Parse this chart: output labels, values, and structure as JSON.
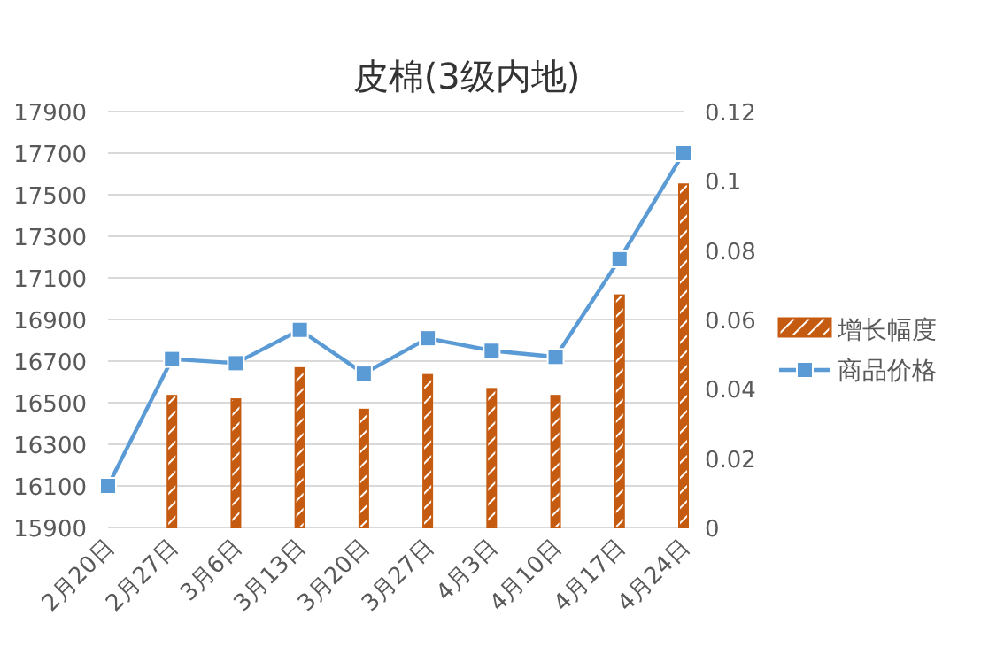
{
  "chart_data": {
    "type": "bar",
    "title": "皮棉(3级内地)",
    "categories": [
      "2月20日",
      "2月27日",
      "3月6日",
      "3月13日",
      "3月20日",
      "3月27日",
      "4月3日",
      "4月10日",
      "4月17日",
      "4月24日"
    ],
    "series": [
      {
        "name": "增长幅度",
        "axis": "y2",
        "color": "#c55a11",
        "values": [
          null,
          0.038,
          0.037,
          0.046,
          0.034,
          0.044,
          0.04,
          0.038,
          0.067,
          0.099
        ]
      },
      {
        "name": "商品价格",
        "type": "line",
        "color": "#5b9bd5",
        "marker": "square",
        "values": [
          16100,
          16710,
          16690,
          16850,
          16640,
          16810,
          16750,
          16720,
          17190,
          17700
        ]
      }
    ],
    "ylim": [
      15900,
      17900
    ],
    "yticks": [
      15900,
      16100,
      16300,
      16500,
      16700,
      16900,
      17100,
      17300,
      17500,
      17700,
      17900
    ],
    "y2lim": [
      0,
      0.12
    ],
    "y2ticks": [
      0,
      0.02,
      0.04,
      0.06,
      0.08,
      {
        "value": 0.1,
        "label": "0.1"
      },
      0.12
    ],
    "grid": "y",
    "legend": "right"
  }
}
